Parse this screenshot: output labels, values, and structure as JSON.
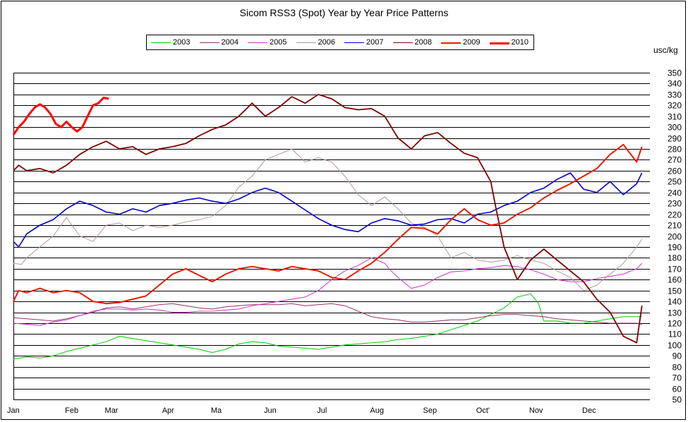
{
  "chart_data": {
    "type": "line",
    "title": "Sicom RSS3 (Spot) Year by Year Price Patterns",
    "ylabel": "usc/kg",
    "ylim": [
      50,
      350
    ],
    "yticks": [
      50,
      60,
      70,
      80,
      90,
      100,
      110,
      120,
      130,
      140,
      150,
      160,
      170,
      180,
      190,
      200,
      210,
      220,
      230,
      240,
      250,
      260,
      270,
      280,
      290,
      300,
      310,
      320,
      330,
      340,
      350
    ],
    "x_unit": "month",
    "xlim": [
      0,
      12
    ],
    "xticks": [
      {
        "label": "Jan",
        "x": 0
      },
      {
        "label": "Feb",
        "x": 1
      },
      {
        "label": "Mar",
        "x": 1.75
      },
      {
        "label": "Apr",
        "x": 2.83
      },
      {
        "label": "Ma",
        "x": 3.75
      },
      {
        "label": "Jun",
        "x": 4.75
      },
      {
        "label": "Jul",
        "x": 5.75
      },
      {
        "label": "Aug",
        "x": 6.75
      },
      {
        "label": "Sep",
        "x": 7.75
      },
      {
        "label": "Oct'",
        "x": 8.75
      },
      {
        "label": "Nov",
        "x": 9.75
      },
      {
        "label": "Dec",
        "x": 10.75
      }
    ],
    "grid": true,
    "legend_position": "top",
    "series": [
      {
        "name": "2003",
        "color": "#00cc00",
        "width": 1,
        "x": [
          0,
          0.25,
          0.5,
          0.75,
          1,
          1.25,
          1.5,
          1.75,
          2,
          2.25,
          2.5,
          2.75,
          3,
          3.25,
          3.5,
          3.75,
          4,
          4.25,
          4.5,
          4.75,
          5,
          5.25,
          5.5,
          5.75,
          6,
          6.25,
          6.5,
          6.75,
          7,
          7.25,
          7.5,
          7.75,
          8,
          8.25,
          8.5,
          8.75,
          9,
          9.25,
          9.5,
          9.75,
          9.9,
          10,
          10.25,
          10.5,
          10.75,
          11,
          11.25,
          11.5,
          11.75,
          11.85
        ],
        "y": [
          87,
          89,
          88,
          90,
          94,
          97,
          100,
          103,
          108,
          106,
          104,
          102,
          100,
          98,
          96,
          93,
          96,
          101,
          103,
          102,
          99,
          98,
          97,
          96,
          98,
          100,
          101,
          102,
          103,
          105,
          106,
          108,
          110,
          114,
          118,
          122,
          128,
          134,
          144,
          147,
          138,
          122,
          122,
          120,
          120,
          122,
          124,
          126,
          126,
          126
        ]
      },
      {
        "name": "2004",
        "color": "#993366",
        "width": 1,
        "x": [
          0,
          0.25,
          0.5,
          0.75,
          1,
          1.25,
          1.5,
          1.75,
          2,
          2.25,
          2.5,
          2.75,
          3,
          3.25,
          3.5,
          3.75,
          4,
          4.25,
          4.5,
          4.75,
          5,
          5.25,
          5.5,
          5.75,
          6,
          6.25,
          6.5,
          6.75,
          7,
          7.25,
          7.5,
          7.75,
          8,
          8.25,
          8.5,
          8.75,
          9,
          9.25,
          9.5,
          9.75,
          10,
          10.25,
          10.5,
          10.75,
          11,
          11.25,
          11.5,
          11.75,
          11.85
        ],
        "y": [
          125,
          124,
          123,
          122,
          124,
          127,
          130,
          134,
          135,
          133,
          135,
          137,
          138,
          136,
          134,
          133,
          135,
          136,
          137,
          137,
          137,
          138,
          136,
          137,
          138,
          136,
          131,
          126,
          124,
          123,
          121,
          121,
          122,
          123,
          123,
          125,
          127,
          128,
          128,
          127,
          126,
          124,
          123,
          122,
          121,
          120,
          120,
          120,
          119
        ]
      },
      {
        "name": "2005",
        "color": "#cc33cc",
        "width": 1,
        "x": [
          0,
          0.25,
          0.5,
          0.75,
          1,
          1.25,
          1.5,
          1.75,
          2,
          2.25,
          2.5,
          2.75,
          3,
          3.25,
          3.5,
          3.75,
          4,
          4.25,
          4.5,
          4.75,
          5,
          5.25,
          5.5,
          5.75,
          6,
          6.25,
          6.5,
          6.75,
          7,
          7.1,
          7.25,
          7.5,
          7.75,
          8,
          8.25,
          8.5,
          8.75,
          9,
          9.25,
          9.5,
          9.75,
          10,
          10.25,
          10.5,
          10.75,
          11,
          11.25,
          11.5,
          11.75,
          11.85
        ],
        "y": [
          120,
          119,
          118,
          121,
          123,
          127,
          131,
          133,
          133,
          132,
          133,
          132,
          130,
          130,
          131,
          131,
          132,
          133,
          136,
          138,
          140,
          142,
          144,
          150,
          160,
          168,
          173,
          180,
          175,
          169,
          162,
          152,
          155,
          162,
          167,
          168,
          170,
          171,
          173,
          172,
          169,
          165,
          160,
          158,
          158,
          161,
          163,
          165,
          170,
          175
        ]
      },
      {
        "name": "2006",
        "color": "#b09a96",
        "width": 1,
        "x": [
          0,
          0.15,
          0.25,
          0.5,
          0.75,
          1,
          1.25,
          1.5,
          1.75,
          2,
          2.25,
          2.5,
          2.75,
          3,
          3.25,
          3.5,
          3.75,
          4,
          4.25,
          4.5,
          4.75,
          5,
          5.25,
          5.5,
          5.75,
          6,
          6.25,
          6.5,
          6.75,
          7,
          7.25,
          7.5,
          7.75,
          8,
          8.25,
          8.5,
          8.75,
          9,
          9.25,
          9.5,
          9.75,
          10,
          10.25,
          10.5,
          10.75,
          11,
          11.25,
          11.5,
          11.75,
          11.85
        ],
        "y": [
          175,
          174,
          180,
          190,
          200,
          217,
          200,
          195,
          210,
          212,
          205,
          210,
          208,
          210,
          213,
          215,
          218,
          228,
          245,
          255,
          270,
          275,
          280,
          268,
          272,
          268,
          255,
          238,
          228,
          236,
          225,
          212,
          208,
          200,
          180,
          185,
          178,
          176,
          178,
          182,
          178,
          175,
          168,
          162,
          150,
          155,
          165,
          175,
          190,
          197
        ]
      },
      {
        "name": "2007",
        "color": "#0000cc",
        "width": 1.6,
        "x": [
          0,
          0.1,
          0.25,
          0.5,
          0.75,
          1,
          1.25,
          1.5,
          1.75,
          2,
          2.25,
          2.5,
          2.75,
          3,
          3.25,
          3.5,
          3.75,
          4,
          4.25,
          4.5,
          4.75,
          5,
          5.25,
          5.5,
          5.75,
          6,
          6.25,
          6.5,
          6.75,
          7,
          7.25,
          7.5,
          7.75,
          8,
          8.25,
          8.5,
          8.75,
          9,
          9.25,
          9.5,
          9.75,
          10,
          10.25,
          10.5,
          10.75,
          11,
          11.25,
          11.5,
          11.75,
          11.85
        ],
        "y": [
          195,
          190,
          202,
          210,
          215,
          225,
          232,
          228,
          222,
          220,
          225,
          222,
          228,
          230,
          233,
          235,
          232,
          230,
          234,
          240,
          244,
          240,
          232,
          224,
          216,
          210,
          206,
          204,
          212,
          216,
          214,
          210,
          211,
          215,
          216,
          212,
          220,
          222,
          228,
          232,
          240,
          244,
          252,
          258,
          243,
          240,
          250,
          238,
          248,
          258
        ]
      },
      {
        "name": "2008",
        "color": "#800000",
        "width": 1.8,
        "x": [
          0,
          0.1,
          0.25,
          0.5,
          0.75,
          1,
          1.25,
          1.5,
          1.75,
          2,
          2.25,
          2.5,
          2.75,
          3,
          3.25,
          3.5,
          3.75,
          4,
          4.25,
          4.5,
          4.75,
          5,
          5.25,
          5.5,
          5.75,
          6,
          6.25,
          6.5,
          6.75,
          7,
          7.25,
          7.5,
          7.75,
          8,
          8.25,
          8.5,
          8.75,
          9,
          9.1,
          9.25,
          9.5,
          9.75,
          10,
          10.25,
          10.5,
          10.75,
          11,
          11.25,
          11.5,
          11.75,
          11.85
        ],
        "y": [
          260,
          265,
          260,
          262,
          258,
          265,
          275,
          282,
          287,
          280,
          282,
          275,
          280,
          282,
          285,
          292,
          298,
          302,
          310,
          322,
          310,
          318,
          328,
          322,
          330,
          326,
          318,
          316,
          317,
          310,
          290,
          280,
          292,
          295,
          285,
          276,
          272,
          250,
          225,
          190,
          160,
          178,
          188,
          178,
          168,
          158,
          142,
          130,
          108,
          102,
          136
        ]
      },
      {
        "name": "2009",
        "color": "#e61c00",
        "width": 2,
        "x": [
          0,
          0.1,
          0.25,
          0.5,
          0.75,
          1,
          1.25,
          1.5,
          1.75,
          2,
          2.25,
          2.5,
          2.75,
          3,
          3.25,
          3.5,
          3.75,
          4,
          4.25,
          4.5,
          4.75,
          5,
          5.25,
          5.5,
          5.75,
          6,
          6.25,
          6.5,
          6.75,
          7,
          7.25,
          7.5,
          7.75,
          8,
          8.25,
          8.5,
          8.75,
          9,
          9.25,
          9.5,
          9.75,
          10,
          10.25,
          10.5,
          10.75,
          11,
          11.25,
          11.5,
          11.75,
          11.85
        ],
        "y": [
          140,
          150,
          148,
          152,
          148,
          150,
          148,
          140,
          138,
          139,
          142,
          145,
          155,
          165,
          170,
          164,
          158,
          165,
          170,
          172,
          170,
          168,
          172,
          170,
          168,
          162,
          160,
          168,
          175,
          185,
          197,
          208,
          207,
          202,
          215,
          225,
          215,
          210,
          212,
          220,
          226,
          235,
          242,
          248,
          255,
          262,
          275,
          284,
          268,
          282
        ]
      },
      {
        "name": "2010",
        "color": "#ff0000",
        "width": 3,
        "x": [
          0,
          0.1,
          0.2,
          0.3,
          0.4,
          0.5,
          0.6,
          0.7,
          0.8,
          0.9,
          1,
          1.1,
          1.2,
          1.3,
          1.4,
          1.5,
          1.6,
          1.7,
          1.8
        ],
        "y": [
          293,
          300,
          305,
          312,
          318,
          321,
          318,
          312,
          303,
          300,
          305,
          300,
          296,
          300,
          310,
          320,
          322,
          327,
          326
        ]
      }
    ]
  }
}
